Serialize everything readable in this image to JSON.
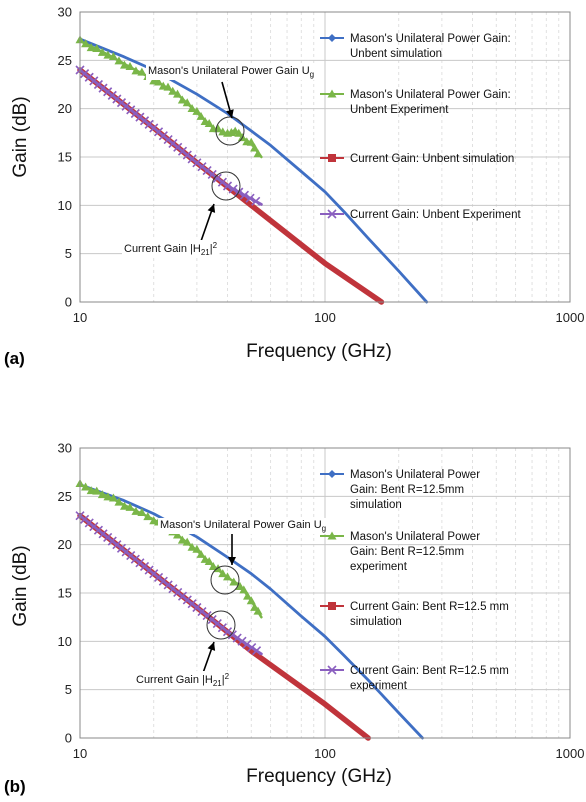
{
  "chart_data": [
    {
      "panel_label": "(a)",
      "type": "line",
      "xscale": "log",
      "xlabel": "Frequency (GHz)",
      "ylabel": "Gain (dB)",
      "xlim": [
        10,
        1000
      ],
      "ylim": [
        0,
        30
      ],
      "x_ticks": [
        "10",
        "100",
        "1000"
      ],
      "y_ticks": [
        "0",
        "5",
        "10",
        "15",
        "20",
        "25",
        "30"
      ],
      "grid": true,
      "legend_position": "right",
      "series": [
        {
          "name": "Mason's Unilateral Power Gain: Unbent simulation",
          "color": "#3f6fc4",
          "marker": "diamond",
          "x": [
            10,
            15,
            20,
            30,
            40,
            50,
            60,
            80,
            100,
            120,
            150,
            200,
            260
          ],
          "y": [
            27.2,
            25.4,
            24.0,
            21.5,
            19.5,
            17.7,
            16.2,
            13.5,
            11.4,
            9.3,
            6.6,
            3.2,
            0
          ]
        },
        {
          "name": "Mason's Unilateral Power Gain: Unbent Experiment",
          "color": "#7ab648",
          "marker": "triangle",
          "x": [
            10,
            13,
            16,
            20,
            25,
            30,
            35,
            40,
            43,
            46,
            50,
            55
          ],
          "y": [
            27.0,
            25.6,
            24.3,
            23.0,
            21.5,
            19.6,
            18.0,
            17.4,
            17.8,
            17.0,
            16.4,
            15.0
          ]
        },
        {
          "name": "Current Gain: Unbent simulation",
          "color": "#c0343b",
          "marker": "square",
          "x": [
            10,
            20,
            30,
            50,
            100,
            170
          ],
          "y": [
            24.0,
            18.0,
            14.4,
            10.0,
            4.0,
            0
          ]
        },
        {
          "name": "Current Gain: Unbent Experiment",
          "color": "#8a5fbf",
          "marker": "cross",
          "x": [
            10,
            20,
            30,
            40,
            55
          ],
          "y": [
            24.0,
            18.0,
            14.4,
            12.0,
            10.1
          ]
        }
      ],
      "annotations": [
        {
          "text": "Mason's Unilateral Power Gain U",
          "subscript": "g"
        },
        {
          "text": "Current Gain |H",
          "subscript": "21",
          "suffix": "|",
          "superscript": "2"
        }
      ]
    },
    {
      "panel_label": "(b)",
      "type": "line",
      "xscale": "log",
      "xlabel": "Frequency (GHz)",
      "ylabel": "Gain (dB)",
      "xlim": [
        10,
        1000
      ],
      "ylim": [
        0,
        30
      ],
      "x_ticks": [
        "10",
        "100",
        "1000"
      ],
      "y_ticks": [
        "0",
        "5",
        "10",
        "15",
        "20",
        "25",
        "30"
      ],
      "grid": true,
      "legend_position": "right",
      "series": [
        {
          "name_lines": [
            "Mason's Unilateral Power",
            "Gain: Bent R=12.5mm",
            "simulation"
          ],
          "color": "#3f6fc4",
          "marker": "diamond",
          "x": [
            10,
            15,
            20,
            30,
            40,
            50,
            60,
            80,
            100,
            120,
            150,
            200,
            250
          ],
          "y": [
            26.2,
            24.6,
            23.2,
            20.8,
            18.7,
            17.0,
            15.4,
            12.6,
            10.5,
            8.5,
            6.0,
            2.6,
            0
          ]
        },
        {
          "name_lines": [
            "Mason's Unilateral Power",
            "Gain: Bent R=12.5mm",
            "experiment"
          ],
          "color": "#7ab648",
          "marker": "triangle",
          "x": [
            10,
            13,
            16,
            20,
            25,
            30,
            35,
            40,
            45,
            50,
            55
          ],
          "y": [
            26.2,
            25.0,
            23.8,
            22.6,
            21.0,
            19.4,
            17.8,
            16.6,
            15.8,
            14.2,
            12.5
          ]
        },
        {
          "name_lines": [
            "Current Gain: Bent R=12.5 mm",
            "simulation"
          ],
          "color": "#c0343b",
          "marker": "square",
          "x": [
            10,
            20,
            30,
            50,
            100,
            150
          ],
          "y": [
            23.0,
            17.0,
            13.5,
            9.0,
            3.5,
            0
          ]
        },
        {
          "name_lines": [
            "Current Gain: Bent R=12.5 mm",
            "experiment"
          ],
          "color": "#8a5fbf",
          "marker": "cross",
          "x": [
            10,
            20,
            30,
            40,
            55
          ],
          "y": [
            23.0,
            17.0,
            13.5,
            11.0,
            8.7
          ]
        }
      ],
      "annotations": [
        {
          "text": "Mason's Unilateral Power Gain U",
          "subscript": "g"
        },
        {
          "text": "Current Gain |H",
          "subscript": "21",
          "suffix": "|",
          "superscript": "2"
        }
      ]
    }
  ]
}
